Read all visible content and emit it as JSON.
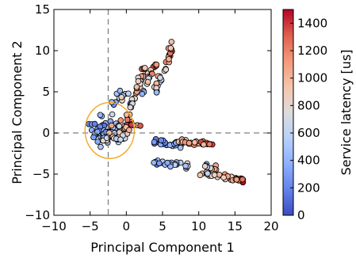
{
  "chart_data": {
    "type": "scatter",
    "xlabel": "Principal Component 1",
    "ylabel": "Principal Component 2",
    "xlim": [
      -10,
      20
    ],
    "ylim": [
      -10,
      15
    ],
    "xticks": [
      "−10",
      "−5",
      "0",
      "5",
      "10",
      "15",
      "20"
    ],
    "yticks": [
      "−10",
      "−5",
      "0",
      "5",
      "10",
      "15"
    ],
    "grid": false,
    "reference_lines": {
      "x": -2.5,
      "y": 0,
      "style": "dashed",
      "color": "#808080"
    },
    "highlight_circle": {
      "center": [
        -2.3,
        0.3
      ],
      "radius": 3.4,
      "color": "#f5a623"
    },
    "colorbar": {
      "label": "Service latency [us]",
      "min": 0,
      "max": 1500,
      "ticks": [
        "0",
        "200",
        "400",
        "600",
        "800",
        "1000",
        "1200",
        "1400"
      ],
      "tick_values": [
        0,
        200,
        400,
        600,
        800,
        1000,
        1200,
        1400
      ],
      "colormap": "coolwarm",
      "colors": [
        "#3b4cc0",
        "#6282ea",
        "#8db0fe",
        "#b8d0f9",
        "#dddcdc",
        "#f5c4ac",
        "#f49a7b",
        "#de604d",
        "#b40426"
      ]
    },
    "clusters": [
      {
        "name": "",
        "x0": -4.5,
        "y0": 0.2,
        "x1": -1.0,
        "y1": 0.2,
        "spread": 1.3,
        "n": 80,
        "latency_low": 80,
        "latency_high": 700
      },
      {
        "name": "",
        "x0": -2.5,
        "y0": -1.0,
        "x1": 0.8,
        "y1": 1.6,
        "spread": 0.8,
        "n": 40,
        "latency_low": 300,
        "latency_high": 1500
      },
      {
        "name": "",
        "x0": -2.0,
        "y0": 3.5,
        "x1": 0.5,
        "y1": 5.0,
        "spread": 0.4,
        "n": 12,
        "latency_low": 200,
        "latency_high": 1100
      },
      {
        "name": "",
        "x0": 0.5,
        "y0": 3.0,
        "x1": 2.5,
        "y1": 8.0,
        "spread": 0.3,
        "n": 30,
        "latency_low": 200,
        "latency_high": 1500
      },
      {
        "name": "",
        "x0": 2.0,
        "y0": 4.5,
        "x1": 4.0,
        "y1": 8.5,
        "spread": 0.3,
        "n": 18,
        "latency_low": 300,
        "latency_high": 1500
      },
      {
        "name": "",
        "x0": 4.0,
        "y0": 5.0,
        "x1": 6.5,
        "y1": 11.0,
        "spread": 0.3,
        "n": 30,
        "latency_low": 400,
        "latency_high": 1500
      },
      {
        "name": "",
        "x0": 3.5,
        "y0": -1.0,
        "x1": 7.5,
        "y1": -1.5,
        "spread": 0.3,
        "n": 30,
        "latency_low": 100,
        "latency_high": 500
      },
      {
        "name": "",
        "x0": 7.0,
        "y0": -1.0,
        "x1": 12.0,
        "y1": -1.4,
        "spread": 0.3,
        "n": 30,
        "latency_low": 700,
        "latency_high": 1500
      },
      {
        "name": "",
        "x0": 4.0,
        "y0": -3.5,
        "x1": 8.5,
        "y1": -4.0,
        "spread": 0.3,
        "n": 28,
        "latency_low": 100,
        "latency_high": 900
      },
      {
        "name": "",
        "x0": 10.5,
        "y0": -5.0,
        "x1": 16.5,
        "y1": -5.7,
        "spread": 0.3,
        "n": 40,
        "latency_low": 500,
        "latency_high": 1500
      },
      {
        "name": "",
        "x0": 11.0,
        "y0": -4.0,
        "x1": 12.5,
        "y1": -4.5,
        "spread": 0.3,
        "n": 10,
        "latency_low": 400,
        "latency_high": 1200
      }
    ]
  }
}
